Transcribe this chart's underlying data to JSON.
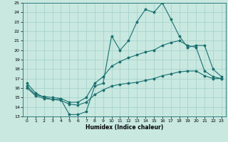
{
  "xlabel": "Humidex (Indice chaleur)",
  "xlim": [
    -0.5,
    23.5
  ],
  "ylim": [
    13,
    25
  ],
  "xticks": [
    0,
    1,
    2,
    3,
    4,
    5,
    6,
    7,
    8,
    9,
    10,
    11,
    12,
    13,
    14,
    15,
    16,
    17,
    18,
    19,
    20,
    21,
    22,
    23
  ],
  "yticks": [
    13,
    14,
    15,
    16,
    17,
    18,
    19,
    20,
    21,
    22,
    23,
    24,
    25
  ],
  "bg_color": "#c8e8e0",
  "line_color": "#1a7070",
  "grid_color": "#a8d4cc",
  "line1_y": [
    16.5,
    15.5,
    15.0,
    14.8,
    14.8,
    13.2,
    13.2,
    13.5,
    16.2,
    16.5,
    21.5,
    20.0,
    21.0,
    23.0,
    24.3,
    24.0,
    25.0,
    23.3,
    21.5,
    20.3,
    20.5,
    20.5,
    18.0,
    17.2
  ],
  "line2_y": [
    16.2,
    15.3,
    15.1,
    15.0,
    14.9,
    14.5,
    14.5,
    15.0,
    16.5,
    17.2,
    18.3,
    18.8,
    19.2,
    19.5,
    19.8,
    20.0,
    20.5,
    20.8,
    21.0,
    20.5,
    20.3,
    17.8,
    17.2,
    17.0
  ],
  "line3_y": [
    16.0,
    15.2,
    14.9,
    14.8,
    14.7,
    14.3,
    14.2,
    14.5,
    15.3,
    15.8,
    16.2,
    16.4,
    16.5,
    16.6,
    16.8,
    17.0,
    17.3,
    17.5,
    17.7,
    17.8,
    17.8,
    17.3,
    17.0,
    17.0
  ]
}
